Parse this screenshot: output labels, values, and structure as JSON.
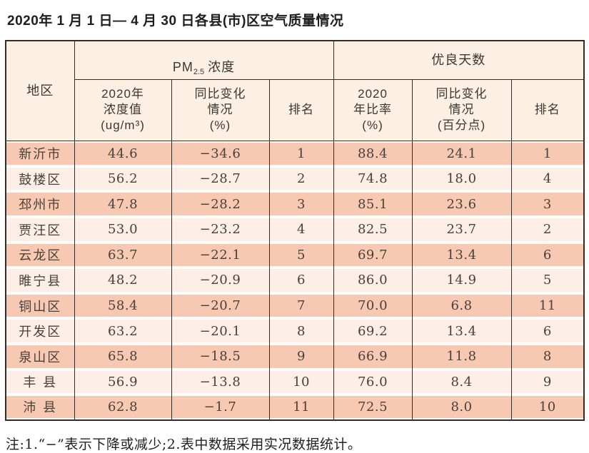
{
  "title": "2020年 1 月 1 日— 4 月 30 日各县(市)区空气质量情况",
  "table": {
    "header": {
      "region": "地区",
      "pm_group": {
        "prefix": "PM",
        "sub": "2.5",
        "suffix": "浓度"
      },
      "good_days_group": "优良天数",
      "sub_headers": [
        "2020年\n浓度值\n(ug/m³)",
        "同比变化\n情况\n(%)",
        "排名",
        "2020\n年比率\n(%)",
        "同比变化\n情况\n(百分点)",
        "排名"
      ]
    },
    "rows": [
      {
        "region": "新沂市",
        "values": [
          "44.6",
          "−34.6",
          "1",
          "88.4",
          "24.1",
          "1"
        ]
      },
      {
        "region": "鼓楼区",
        "values": [
          "56.2",
          "−28.7",
          "2",
          "74.8",
          "18.0",
          "4"
        ]
      },
      {
        "region": "邳州市",
        "values": [
          "47.8",
          "−28.2",
          "3",
          "85.1",
          "23.6",
          "3"
        ]
      },
      {
        "region": "贾汪区",
        "values": [
          "53.0",
          "−23.2",
          "4",
          "82.5",
          "23.7",
          "2"
        ]
      },
      {
        "region": "云龙区",
        "values": [
          "63.7",
          "−22.1",
          "5",
          "69.7",
          "13.4",
          "6"
        ]
      },
      {
        "region": "睢宁县",
        "values": [
          "48.2",
          "−20.9",
          "6",
          "86.0",
          "14.9",
          "5"
        ]
      },
      {
        "region": "铜山区",
        "values": [
          "58.4",
          "−20.7",
          "7",
          "70.0",
          "6.8",
          "11"
        ]
      },
      {
        "region": "开发区",
        "values": [
          "63.2",
          "−20.1",
          "8",
          "69.2",
          "13.4",
          "6"
        ]
      },
      {
        "region": "泉山区",
        "values": [
          "65.8",
          "−18.5",
          "9",
          "66.9",
          "11.8",
          "8"
        ]
      },
      {
        "region": "丰 县",
        "values": [
          "56.9",
          "−13.8",
          "10",
          "76.0",
          "8.4",
          "9"
        ]
      },
      {
        "region": "沛 县",
        "values": [
          "62.8",
          "−1.7",
          "11",
          "72.5",
          "8.0",
          "10"
        ]
      }
    ]
  },
  "note": "注:1.“−”表示下降或减少;2.表中数据采用实况数据统计。",
  "colors": {
    "row_salmon": "#f8c9b2",
    "row_light": "#fdefe7",
    "header_bg": "#fbf0e1",
    "border": "#332c28"
  }
}
